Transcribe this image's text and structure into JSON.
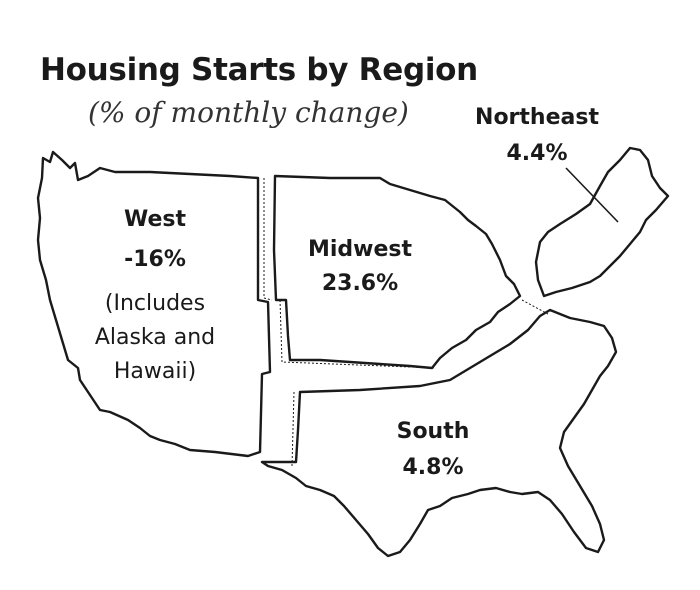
{
  "title": "Housing Starts by Region",
  "subtitle": "(% of monthly change)",
  "regions": {
    "west": {
      "name": "West",
      "value": "-16%",
      "note": [
        "(Includes",
        "Alaska and",
        "Hawaii)"
      ]
    },
    "midwest": {
      "name": "Midwest",
      "value": "23.6%"
    },
    "northeast": {
      "name": "Northeast",
      "value": "4.4%"
    },
    "south": {
      "name": "South",
      "value": "4.8%"
    }
  },
  "colors": {
    "fill": "#ffffff",
    "stroke": "#1a1a1a",
    "text": "#1a1a1a"
  }
}
